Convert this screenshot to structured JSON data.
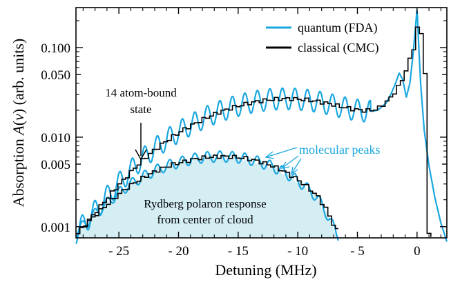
{
  "chart_data": {
    "type": "line",
    "xlabel": "Detuning (MHz)",
    "ylabel": "Absorption A(ν)  (arb. units)",
    "ylabel_parts": {
      "prefix": "Absorption ",
      "symbol": "A",
      "paren_open": "(",
      "var": "ν",
      "paren_close": ")",
      "suffix": "  (arb. units)"
    },
    "x_scale": "linear",
    "y_scale": "log",
    "xlim": [
      -28.6,
      2.5
    ],
    "ylim": [
      0.00075,
      0.28
    ],
    "x_ticks": [
      -25,
      -20,
      -15,
      -10,
      -5,
      0
    ],
    "x_tick_labels": [
      "- 25",
      "- 20",
      "- 15",
      "- 10",
      "- 5",
      "0"
    ],
    "y_ticks": [
      0.001,
      0.005,
      0.01,
      0.05,
      0.1
    ],
    "y_tick_labels": [
      "0.001",
      "0.005",
      "0.010",
      "0.050",
      "0.100"
    ],
    "grid": false,
    "legend_position": "top-right",
    "colors": {
      "quantum": "#1aa7e0",
      "classical": "#000000",
      "fill": "#d4eef4",
      "annotation_blue": "#1aa7e0"
    },
    "series": [
      {
        "name": "quantum (FDA)",
        "key": "quantum_full",
        "color": "#1aa7e0",
        "x": [
          -28.6,
          -27.5,
          -26.5,
          -25.5,
          -24.5,
          -23.5,
          -22.5,
          -21.5,
          -20.5,
          -19.5,
          -18.5,
          -17.5,
          -16.5,
          -15.5,
          -14.5,
          -13.5,
          -12.5,
          -11.5,
          -10.5,
          -9.5,
          -8.5,
          -7.5,
          -6.5,
          -5.5,
          -4.5,
          -3.8,
          -3.3,
          -2.6,
          -2.2,
          -1.8,
          -1.5,
          -1.2,
          -0.9,
          -0.6,
          -0.35,
          -0.15,
          0.0,
          0.15,
          0.3,
          0.6,
          1.0,
          1.5,
          2.0,
          2.5
        ],
        "y": [
          0.00085,
          0.00125,
          0.0018,
          0.0026,
          0.0036,
          0.005,
          0.0066,
          0.0084,
          0.0104,
          0.0126,
          0.0148,
          0.0172,
          0.0195,
          0.0216,
          0.0235,
          0.0251,
          0.0262,
          0.0268,
          0.0268,
          0.0262,
          0.0251,
          0.0236,
          0.0219,
          0.0205,
          0.0196,
          0.0195,
          0.02,
          0.024,
          0.03,
          0.04,
          0.052,
          0.044,
          0.028,
          0.04,
          0.08,
          0.16,
          0.27,
          0.1,
          0.04,
          0.012,
          0.0048,
          0.0021,
          0.0011,
          0.00068
        ]
      },
      {
        "name": "classical (CMC)",
        "key": "classical_full",
        "color": "#000000",
        "x": [
          -28.6,
          -27.5,
          -26.5,
          -25.5,
          -24.5,
          -23.5,
          -22.5,
          -21.5,
          -20.5,
          -19.5,
          -18.5,
          -17.5,
          -16.5,
          -15.5,
          -14.5,
          -13.5,
          -12.5,
          -11.5,
          -10.5,
          -9.5,
          -8.5,
          -7.5,
          -6.5,
          -5.5,
          -4.5,
          -3.5,
          -2.5,
          -1.5,
          -1.0,
          -0.5,
          -0.2,
          0.0,
          0.2,
          0.5,
          0.7,
          0.75,
          1.2
        ],
        "y": [
          0.00085,
          0.00125,
          0.0018,
          0.0026,
          0.0036,
          0.005,
          0.0066,
          0.0084,
          0.0104,
          0.0126,
          0.0148,
          0.0172,
          0.0195,
          0.0216,
          0.0235,
          0.0251,
          0.0262,
          0.0268,
          0.0268,
          0.0262,
          0.0251,
          0.0236,
          0.0219,
          0.0205,
          0.0197,
          0.0205,
          0.026,
          0.04,
          0.06,
          0.09,
          0.14,
          0.22,
          0.14,
          0.06,
          0.02,
          0.00082,
          0.00078
        ]
      },
      {
        "key": "quantum_center",
        "color": "#1aa7e0",
        "x": [
          -28.6,
          -27.5,
          -26.5,
          -25.5,
          -24.5,
          -23.5,
          -22.5,
          -21.5,
          -20.5,
          -19.5,
          -18.5,
          -17.5,
          -16.5,
          -15.5,
          -14.5,
          -13.5,
          -12.5,
          -11.5,
          -10.5,
          -9.5,
          -8.5,
          -7.8,
          -7.2,
          -6.6
        ],
        "y": [
          0.00085,
          0.0012,
          0.0016,
          0.0021,
          0.0027,
          0.0033,
          0.0039,
          0.0045,
          0.005,
          0.0054,
          0.0058,
          0.006,
          0.0061,
          0.006,
          0.0058,
          0.0054,
          0.0049,
          0.0043,
          0.0036,
          0.0029,
          0.0022,
          0.0016,
          0.0011,
          0.0008
        ]
      },
      {
        "key": "classical_center",
        "color": "#000000",
        "x": [
          -28.6,
          -27.5,
          -26.5,
          -25.5,
          -24.5,
          -23.5,
          -22.5,
          -21.5,
          -20.5,
          -19.5,
          -18.5,
          -17.5,
          -16.5,
          -15.5,
          -14.5,
          -13.5,
          -12.5,
          -11.5,
          -10.5,
          -9.5,
          -8.5,
          -7.8,
          -7.2,
          -6.6
        ],
        "y": [
          0.00085,
          0.0012,
          0.0016,
          0.0021,
          0.0027,
          0.0033,
          0.0039,
          0.0045,
          0.005,
          0.0054,
          0.0058,
          0.006,
          0.0061,
          0.006,
          0.0058,
          0.0054,
          0.0049,
          0.0043,
          0.0036,
          0.0029,
          0.0022,
          0.0016,
          0.0011,
          0.0008
        ]
      }
    ],
    "annotations": {
      "bound_state_line1": "14 atom-bound",
      "bound_state_line2": "state",
      "molecular_peaks": "molecular peaks",
      "polaron_line1": "Rydberg polaron response",
      "polaron_line2": "from center of cloud"
    }
  }
}
